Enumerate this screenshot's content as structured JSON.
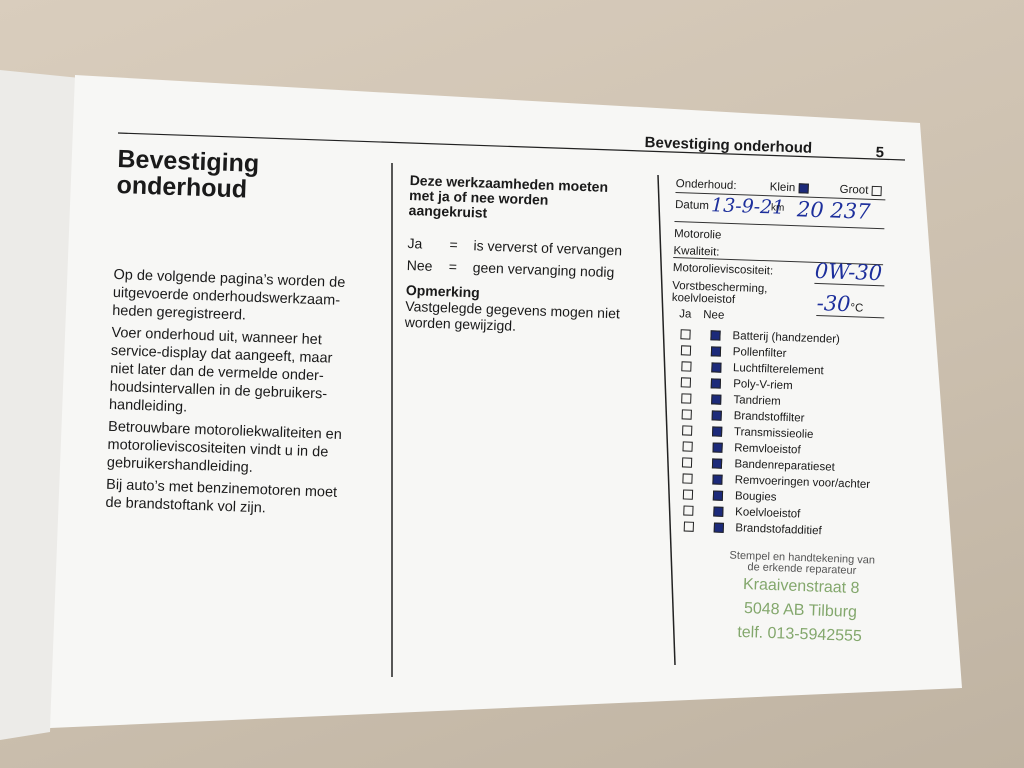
{
  "header": {
    "title": "Bevestiging onderhoud",
    "page_number": "5"
  },
  "left": {
    "heading": [
      "Bevestiging",
      "onderhoud"
    ],
    "paragraphs": [
      [
        "Op de volgende pagina’s worden de",
        "uitgevoerde onderhoudswerkzaam-",
        "heden geregistreerd."
      ],
      [
        "Voer onderhoud uit, wanneer het",
        "service-display dat aangeeft, maar",
        "niet later dan de vermelde onder-",
        "houdsintervallen in de gebruikers-",
        "handleiding."
      ],
      [
        "Betrouwbare motoroliekwaliteiten en",
        "motorolieviscositeiten vindt u in de",
        "gebruikershandleiding."
      ],
      [
        "Bij auto’s met benzinemotoren moet",
        "de brandstoftank vol zijn."
      ]
    ]
  },
  "middle": {
    "heading": [
      "Deze werkzaamheden moeten",
      "met ja of nee worden",
      "aangekruist"
    ],
    "legend": [
      {
        "key": "Ja",
        "sign": "=",
        "text": "is ververst of vervangen"
      },
      {
        "key": "Nee",
        "sign": "=",
        "text": "geen vervanging nodig"
      }
    ],
    "remark_title": "Opmerking",
    "remark": [
      "Vastgelegde gegevens mogen niet",
      "worden gewijzigd."
    ]
  },
  "form": {
    "service_label": "Onderhoud:",
    "small": "Klein",
    "large": "Groot",
    "date_label": "Datum",
    "date": "13-9-21",
    "km_label": "km",
    "km": "20 237",
    "oil_label": "Motorolie",
    "quality_label": "Kwaliteit:",
    "viscosity_label": "Motorolieviscositeit:",
    "viscosity": "0W-30",
    "antifreeze_label": [
      "Vorstbescherming,",
      "koelvloeistof"
    ],
    "antifreeze": "-30",
    "antifreeze_unit": "°C",
    "col_yes": "Ja",
    "col_no": "Nee",
    "items": [
      "Batterij (handzender)",
      "Pollenfilter",
      "Luchtfilterelement",
      "Poly-V-riem",
      "Tandriem",
      "Brandstoffilter",
      "Transmissieolie",
      "Remvloeistof",
      "Bandenreparatieset",
      "Remvoeringen voor/achter",
      "Bougies",
      "Koelvloeistof",
      "Brandstofadditief"
    ]
  },
  "stamp": {
    "caption": [
      "Stempel en handtekening van",
      "de erkende reparateur"
    ],
    "address": [
      "Kraaivenstraat  8",
      "5048 AB Tilburg",
      "telf. 013-5942555"
    ]
  }
}
